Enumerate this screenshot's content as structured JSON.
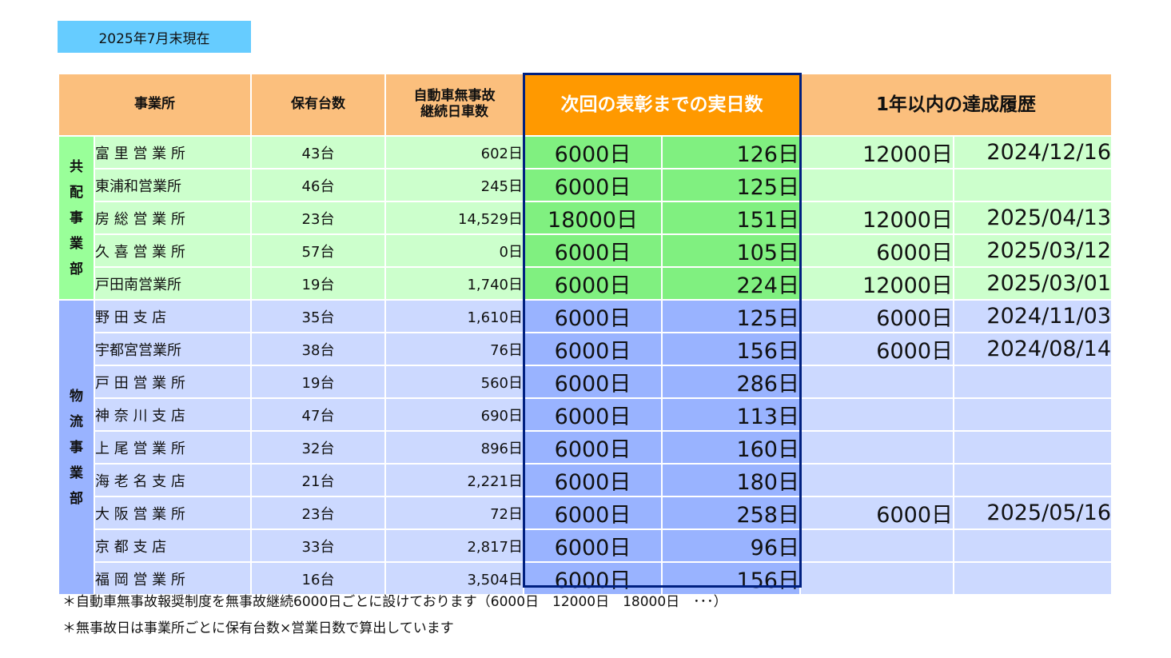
{
  "date_label": "2025年7月末現在",
  "headers": {
    "office": "事業所",
    "units": "保有台数",
    "streak_line1": "自動車無事故",
    "streak_line2": "継続日車数",
    "next": "次回の表彰までの実日数",
    "history": "1年以内の達成履歴"
  },
  "divisions": [
    {
      "label_chars": [
        "共",
        "配",
        "事",
        "業",
        "部"
      ],
      "rows": [
        {
          "office": "富 里 営 業 所",
          "units": "43台",
          "streak": "602日",
          "target": "6000日",
          "remain": "126日",
          "hist_days": "12000日",
          "hist_date": "2024/12/16"
        },
        {
          "office": "東浦和営業所",
          "units": "46台",
          "streak": "245日",
          "target": "6000日",
          "remain": "125日",
          "hist_days": "",
          "hist_date": ""
        },
        {
          "office": "房 総 営 業 所",
          "units": "23台",
          "streak": "14,529日",
          "target": "18000日",
          "remain": "151日",
          "hist_days": "12000日",
          "hist_date": "2025/04/13"
        },
        {
          "office": "久 喜 営 業 所",
          "units": "57台",
          "streak": "0日",
          "target": "6000日",
          "remain": "105日",
          "hist_days": "6000日",
          "hist_date": "2025/03/12"
        },
        {
          "office": "戸田南営業所",
          "units": "19台",
          "streak": "1,740日",
          "target": "6000日",
          "remain": "224日",
          "hist_days": "12000日",
          "hist_date": "2025/03/01"
        }
      ]
    },
    {
      "label_chars": [
        "物",
        "流",
        "事",
        "業",
        "部"
      ],
      "rows": [
        {
          "office": "野 田 支 店",
          "units": "35台",
          "streak": "1,610日",
          "target": "6000日",
          "remain": "125日",
          "hist_days": "6000日",
          "hist_date": "2024/11/03"
        },
        {
          "office": "宇都宮営業所",
          "units": "38台",
          "streak": "76日",
          "target": "6000日",
          "remain": "156日",
          "hist_days": "6000日",
          "hist_date": "2024/08/14"
        },
        {
          "office": "戸 田 営 業 所",
          "units": "19台",
          "streak": "560日",
          "target": "6000日",
          "remain": "286日",
          "hist_days": "",
          "hist_date": ""
        },
        {
          "office": "神 奈 川 支 店",
          "units": "47台",
          "streak": "690日",
          "target": "6000日",
          "remain": "113日",
          "hist_days": "",
          "hist_date": ""
        },
        {
          "office": "上 尾 営 業 所",
          "units": "32台",
          "streak": "896日",
          "target": "6000日",
          "remain": "160日",
          "hist_days": "",
          "hist_date": ""
        },
        {
          "office": "海 老 名 支 店",
          "units": "21台",
          "streak": "2,221日",
          "target": "6000日",
          "remain": "180日",
          "hist_days": "",
          "hist_date": ""
        },
        {
          "office": "大 阪 営 業 所",
          "units": "23台",
          "streak": "72日",
          "target": "6000日",
          "remain": "258日",
          "hist_days": "6000日",
          "hist_date": "2025/05/16"
        },
        {
          "office": "京 都 支 店",
          "units": "33台",
          "streak": "2,817日",
          "target": "6000日",
          "remain": "96日",
          "hist_days": "",
          "hist_date": ""
        },
        {
          "office": "福 岡 営 業 所",
          "units": "16台",
          "streak": "3,504日",
          "target": "6000日",
          "remain": "156日",
          "hist_days": "",
          "hist_date": ""
        }
      ]
    }
  ],
  "notes": [
    "＊自動車無事故報奨制度を無事故継続6000日ごとに設けております（6000日　12000日　18000日　･･･）",
    "＊無事故日は事業所ごとに保有台数×営業日数で算出しています"
  ],
  "colors": {
    "header": "#fbbf7d",
    "header_next": "#ff9900",
    "kyohai_dark": "#99ff99",
    "kyohai_light": "#ccffcc",
    "butsuryu_dark": "#99b3ff",
    "butsuryu_light": "#ccd9ff",
    "frame": "#002080"
  }
}
